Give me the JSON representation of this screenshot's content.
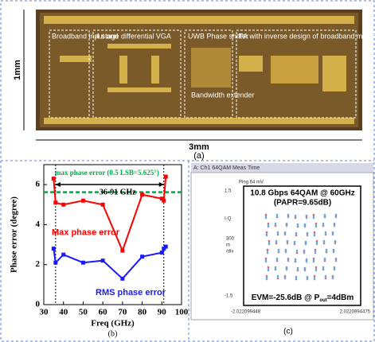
{
  "panel_a": {
    "labels": [
      "Broadband input and",
      "4 stage differential VGA",
      "UWB Phase shifter",
      "Bandwidth extender",
      "PA with inverse design of broadband matching"
    ],
    "height_label": "1mm",
    "width_label": "3mm",
    "caption": "(a)"
  },
  "chart_data": {
    "type": "line",
    "x_label": "Freq (GHz)",
    "y_label": "Phase error (degree)",
    "caption": "(b)",
    "xlim": [
      30,
      100
    ],
    "xticks": [
      30,
      40,
      50,
      60,
      70,
      80,
      90,
      100
    ],
    "ylim": [
      0,
      7
    ],
    "yticks": [
      0,
      2,
      4,
      6
    ],
    "series": [
      {
        "name": "Max phase error",
        "color": "#ff0000",
        "x": [
          35,
          36,
          40,
          50,
          60,
          70,
          80,
          90,
          91,
          92
        ],
        "values": [
          6.3,
          5.1,
          5.0,
          5.2,
          5.0,
          2.7,
          5.5,
          5.3,
          5.2,
          6.4
        ]
      },
      {
        "name": "RMS phase error",
        "color": "#1a1aff",
        "x": [
          35,
          36,
          40,
          50,
          60,
          70,
          80,
          90,
          91,
          92
        ],
        "values": [
          2.8,
          2.1,
          2.5,
          2.1,
          2.2,
          1.3,
          2.4,
          2.6,
          2.8,
          2.9
        ]
      }
    ],
    "reference_line": {
      "value": 5.625,
      "label": "max phase error (0.5 LSB=5.625°)",
      "color": "#00aa44"
    },
    "range_arrow": {
      "from": 36,
      "to": 91,
      "label": "36-91 GHz"
    }
  },
  "panel_c": {
    "window_title": "A: Ch1 64QAM Meas Time",
    "scale_label": "Ping 64 mV",
    "y_top": "1.5",
    "y_name": "I-Q",
    "y_div": [
      "300",
      "m",
      "/div"
    ],
    "y_bottom": "-1.5",
    "x_left": "-2.022099448",
    "x_right": "2.0220994475",
    "headline": "10.8 Gbps 64QAM @ 60GHz",
    "papr": "(PAPR=9.65dB)",
    "evm_prefix": "EVM=-25.6dB @ P",
    "evm_sub": "out",
    "evm_suffix": "=4dBm",
    "caption": "(c)"
  }
}
